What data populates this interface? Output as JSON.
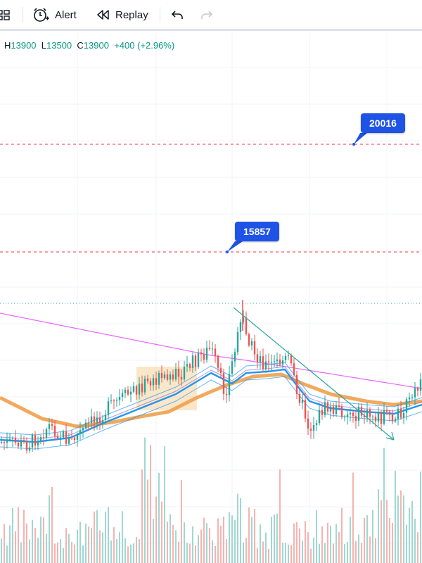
{
  "toolbar": {
    "alert_label": "Alert",
    "replay_label": "Replay"
  },
  "legend": {
    "h_label": "H",
    "h_value": "13900",
    "l_label": "L",
    "l_value": "13500",
    "c_label": "C",
    "c_value": "13900",
    "change": "+400 (+2.96%)"
  },
  "callouts": {
    "upper": "20016",
    "lower": "15857"
  },
  "colors": {
    "up": "#26a69a",
    "down": "#ef5350",
    "target_line": "#f23645",
    "callout_bg": "#1e53e5",
    "ema_orange": "#f0a04b",
    "ma_pink": "#e040fb",
    "band_blue": "#2196f3"
  }
}
